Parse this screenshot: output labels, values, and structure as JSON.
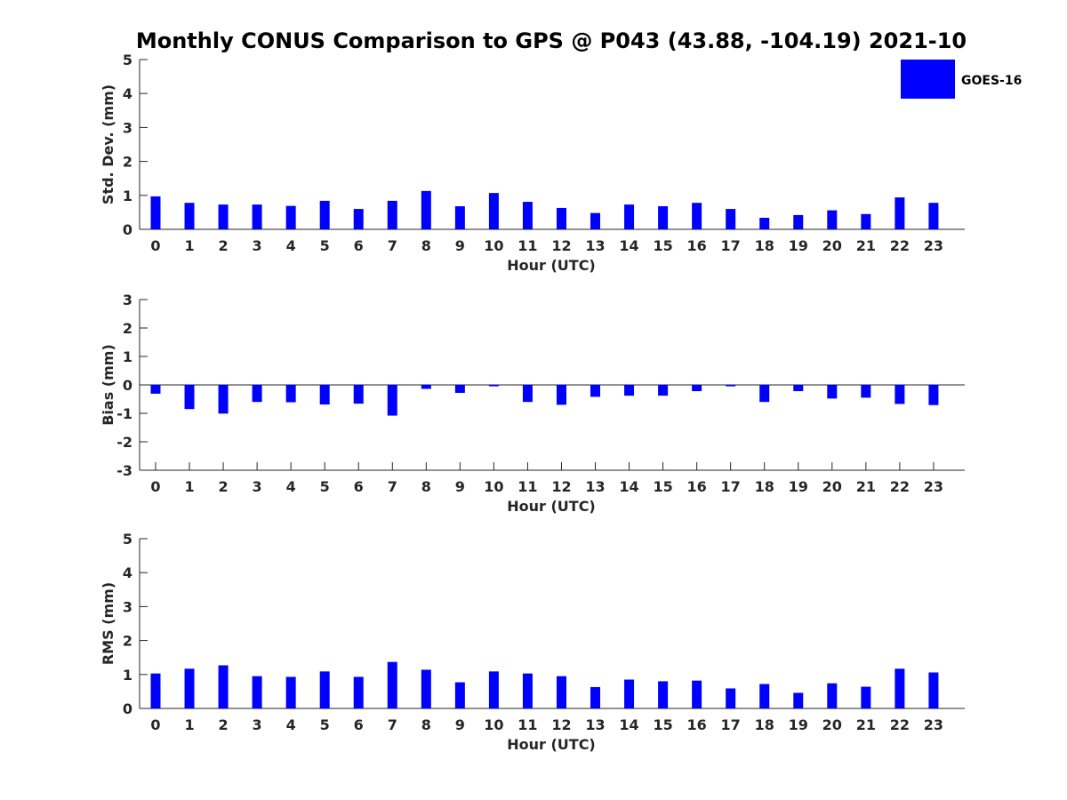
{
  "title": "Monthly CONUS Comparison to GPS @ P043 (43.88, -104.19) 2021-10",
  "legend": {
    "label": "GOES-16",
    "color": "#0000ff",
    "placement": "top-right"
  },
  "chart_data": [
    {
      "type": "bar",
      "name": "std",
      "xlabel": "Hour (UTC)",
      "ylabel": "Std. Dev. (mm)",
      "ylim": [
        0,
        5
      ],
      "yticks": [
        0,
        1,
        2,
        3,
        4,
        5
      ],
      "categories": [
        "0",
        "1",
        "2",
        "3",
        "4",
        "5",
        "6",
        "7",
        "8",
        "9",
        "10",
        "11",
        "12",
        "13",
        "14",
        "15",
        "16",
        "17",
        "18",
        "19",
        "20",
        "21",
        "22",
        "23"
      ],
      "series": [
        {
          "name": "GOES-16",
          "color": "#0000ff",
          "values": [
            0.97,
            0.78,
            0.73,
            0.73,
            0.69,
            0.84,
            0.6,
            0.84,
            1.13,
            0.68,
            1.07,
            0.81,
            0.63,
            0.48,
            0.73,
            0.68,
            0.78,
            0.6,
            0.34,
            0.42,
            0.56,
            0.45,
            0.94,
            0.78
          ]
        }
      ]
    },
    {
      "type": "bar",
      "name": "bias",
      "xlabel": "Hour (UTC)",
      "ylabel": "Bias (mm)",
      "ylim": [
        -3,
        3
      ],
      "yticks": [
        -3,
        -2,
        -1,
        0,
        1,
        2,
        3
      ],
      "zero_line": true,
      "categories": [
        "0",
        "1",
        "2",
        "3",
        "4",
        "5",
        "6",
        "7",
        "8",
        "9",
        "10",
        "11",
        "12",
        "13",
        "14",
        "15",
        "16",
        "17",
        "18",
        "19",
        "20",
        "21",
        "22",
        "23"
      ],
      "series": [
        {
          "name": "GOES-16",
          "color": "#0000ff",
          "values": [
            -0.31,
            -0.85,
            -1.01,
            -0.6,
            -0.61,
            -0.69,
            -0.66,
            -1.08,
            -0.14,
            -0.28,
            -0.05,
            -0.6,
            -0.7,
            -0.42,
            -0.38,
            -0.38,
            -0.22,
            -0.05,
            -0.6,
            -0.22,
            -0.48,
            -0.45,
            -0.67,
            -0.71
          ]
        }
      ]
    },
    {
      "type": "bar",
      "name": "rms",
      "xlabel": "Hour (UTC)",
      "ylabel": "RMS (mm)",
      "ylim": [
        0,
        5
      ],
      "yticks": [
        0,
        1,
        2,
        3,
        4,
        5
      ],
      "categories": [
        "0",
        "1",
        "2",
        "3",
        "4",
        "5",
        "6",
        "7",
        "8",
        "9",
        "10",
        "11",
        "12",
        "13",
        "14",
        "15",
        "16",
        "17",
        "18",
        "19",
        "20",
        "21",
        "22",
        "23"
      ],
      "series": [
        {
          "name": "GOES-16",
          "color": "#0000ff",
          "values": [
            1.03,
            1.17,
            1.27,
            0.95,
            0.93,
            1.09,
            0.93,
            1.37,
            1.14,
            0.77,
            1.09,
            1.03,
            0.95,
            0.63,
            0.85,
            0.8,
            0.82,
            0.59,
            0.72,
            0.46,
            0.74,
            0.64,
            1.17,
            1.06
          ]
        }
      ]
    }
  ]
}
